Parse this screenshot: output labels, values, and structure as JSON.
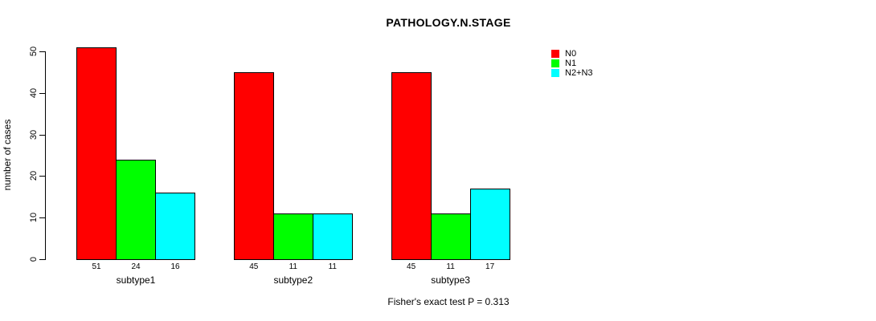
{
  "chart_data": {
    "type": "bar",
    "title": "PATHOLOGY.N.STAGE",
    "ylabel": "number of cases",
    "xlabel": "",
    "categories": [
      "subtype1",
      "subtype2",
      "subtype3"
    ],
    "series": [
      {
        "name": "N0",
        "color": "#FF0000",
        "values": [
          51,
          45,
          45
        ]
      },
      {
        "name": "N1",
        "color": "#00FF00",
        "values": [
          24,
          11,
          11
        ]
      },
      {
        "name": "N2+N3",
        "color": "#00FFFF",
        "values": [
          16,
          11,
          17
        ]
      }
    ],
    "yticks": [
      0,
      10,
      20,
      30,
      40,
      50
    ],
    "ylim": [
      0,
      51
    ],
    "grid": false,
    "legend_position": "top-right",
    "bar_border_color": "#000000",
    "background_color": "#FFFFFF",
    "value_labels_shown": true,
    "annotation": "Fisher's exact test P = 0.313"
  }
}
